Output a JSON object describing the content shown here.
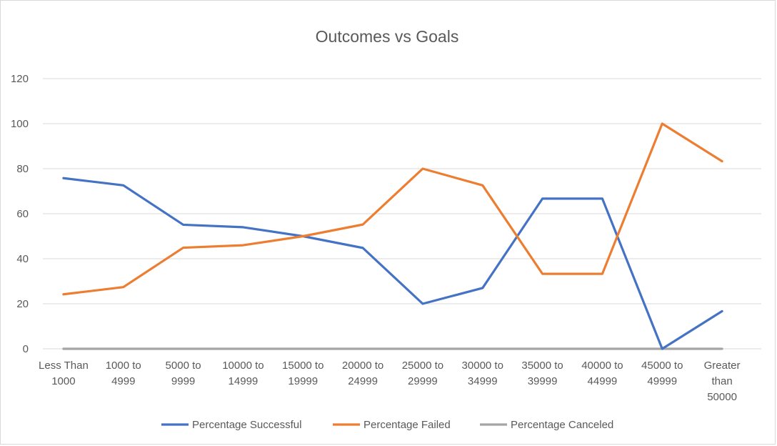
{
  "chart_data": {
    "type": "line",
    "title": "Outcomes vs Goals",
    "xlabel": "",
    "ylabel": "",
    "ylim": [
      0,
      120
    ],
    "yticks": [
      0,
      20,
      40,
      60,
      80,
      100,
      120
    ],
    "grid": true,
    "legend_position": "bottom",
    "categories": [
      [
        "Less Than",
        "1000"
      ],
      [
        "1000 to",
        "4999"
      ],
      [
        "5000 to",
        "9999"
      ],
      [
        "10000 to",
        "14999"
      ],
      [
        "15000 to",
        "19999"
      ],
      [
        "20000 to",
        "24999"
      ],
      [
        "25000 to",
        "29999"
      ],
      [
        "30000 to",
        "34999"
      ],
      [
        "35000 to",
        "39999"
      ],
      [
        "40000 to",
        "44999"
      ],
      [
        "45000 to",
        "49999"
      ],
      [
        "Greater",
        "than",
        "50000"
      ]
    ],
    "series": [
      {
        "name": "Percentage Successful",
        "color": "#4472c4",
        "values": [
          75.8,
          72.6,
          55.1,
          54.0,
          50.0,
          44.8,
          20.0,
          27.0,
          66.7,
          66.7,
          0,
          16.7
        ]
      },
      {
        "name": "Percentage Failed",
        "color": "#ed7d31",
        "values": [
          24.2,
          27.4,
          44.9,
          46.0,
          50.0,
          55.2,
          80.0,
          72.6,
          33.3,
          33.3,
          100,
          83.3
        ]
      },
      {
        "name": "Percentage Canceled",
        "color": "#a5a5a5",
        "values": [
          0,
          0,
          0,
          0,
          0,
          0,
          0,
          0,
          0,
          0,
          0,
          0
        ]
      }
    ]
  }
}
